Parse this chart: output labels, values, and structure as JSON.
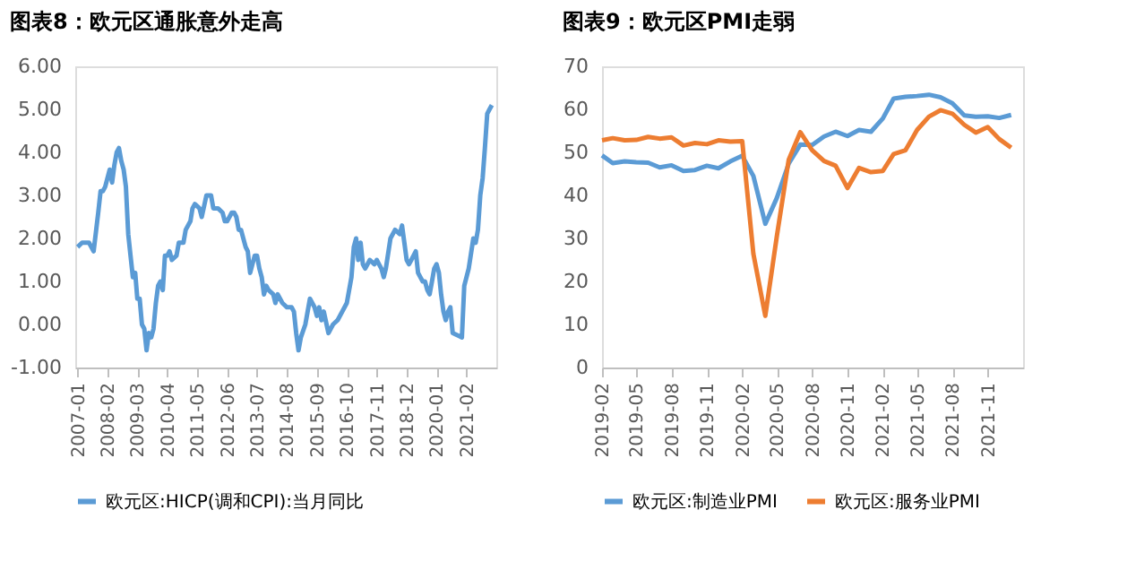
{
  "chart_data": [
    {
      "type": "line",
      "title": "图表8：欧元区通胀意外走高",
      "x": [
        "2007-01",
        "2007-03",
        "2007-06",
        "2007-08",
        "2007-10",
        "2007-11",
        "2007-12",
        "2008-01",
        "2008-03",
        "2008-04",
        "2008-05",
        "2008-06",
        "2008-07",
        "2008-08",
        "2008-09",
        "2008-10",
        "2008-11",
        "2008-12",
        "2009-01",
        "2009-02",
        "2009-03",
        "2009-04",
        "2009-05",
        "2009-06",
        "2009-07",
        "2009-08",
        "2009-09",
        "2009-10",
        "2009-11",
        "2009-12",
        "2010-01",
        "2010-02",
        "2010-03",
        "2010-04",
        "2010-05",
        "2010-06",
        "2010-08",
        "2010-09",
        "2010-11",
        "2010-12",
        "2011-02",
        "2011-03",
        "2011-04",
        "2011-06",
        "2011-07",
        "2011-09",
        "2011-10",
        "2011-11",
        "2011-12",
        "2012-02",
        "2012-04",
        "2012-05",
        "2012-06",
        "2012-08",
        "2012-09",
        "2012-10",
        "2012-11",
        "2012-12",
        "2013-02",
        "2013-03",
        "2013-04",
        "2013-05",
        "2013-06",
        "2013-07",
        "2013-08",
        "2013-09",
        "2013-10",
        "2013-11",
        "2013-12",
        "2014-02",
        "2014-03",
        "2014-04",
        "2014-06",
        "2014-08",
        "2014-10",
        "2014-11",
        "2014-12",
        "2015-01",
        "2015-02",
        "2015-04",
        "2015-06",
        "2015-08",
        "2015-09",
        "2015-10",
        "2015-11",
        "2015-12",
        "2016-02",
        "2016-04",
        "2016-06",
        "2016-09",
        "2016-10",
        "2016-12",
        "2017-01",
        "2017-02",
        "2017-03",
        "2017-04",
        "2017-05",
        "2017-06",
        "2017-08",
        "2017-10",
        "2017-11",
        "2017-12",
        "2018-01",
        "2018-02",
        "2018-03",
        "2018-05",
        "2018-07",
        "2018-09",
        "2018-10",
        "2018-11",
        "2018-12",
        "2019-01",
        "2019-02",
        "2019-04",
        "2019-05",
        "2019-07",
        "2019-08",
        "2019-09",
        "2019-10",
        "2019-11",
        "2019-12",
        "2020-01",
        "2020-02",
        "2020-03",
        "2020-04",
        "2020-05",
        "2020-06",
        "2020-07",
        "2020-08",
        "2020-12",
        "2021-01",
        "2021-03",
        "2021-05",
        "2021-06",
        "2021-07",
        "2021-08",
        "2021-09",
        "2021-10",
        "2021-11",
        "2021-12",
        "2022-01"
      ],
      "series": [
        {
          "name": "欧元区:HICP(调和CPI):当月同比",
          "color": "#5b9bd5",
          "values": [
            1.8,
            1.9,
            1.9,
            1.7,
            2.6,
            3.1,
            3.1,
            3.2,
            3.6,
            3.3,
            3.7,
            4.0,
            4.1,
            3.8,
            3.6,
            3.2,
            2.1,
            1.6,
            1.1,
            1.2,
            0.6,
            0.6,
            0.0,
            -0.1,
            -0.6,
            -0.2,
            -0.3,
            -0.1,
            0.5,
            0.9,
            1.0,
            0.8,
            1.6,
            1.6,
            1.7,
            1.5,
            1.6,
            1.9,
            1.9,
            2.2,
            2.4,
            2.7,
            2.8,
            2.7,
            2.5,
            3.0,
            3.0,
            3.0,
            2.7,
            2.7,
            2.6,
            2.4,
            2.4,
            2.6,
            2.6,
            2.5,
            2.2,
            2.2,
            1.8,
            1.7,
            1.2,
            1.4,
            1.6,
            1.6,
            1.3,
            1.1,
            0.7,
            0.9,
            0.8,
            0.7,
            0.5,
            0.7,
            0.5,
            0.4,
            0.4,
            0.3,
            -0.2,
            -0.6,
            -0.3,
            0.0,
            0.6,
            0.4,
            0.2,
            0.4,
            0.1,
            0.3,
            -0.2,
            0.0,
            0.1,
            0.4,
            0.5,
            1.1,
            1.8,
            2.0,
            1.5,
            1.9,
            1.4,
            1.3,
            1.5,
            1.4,
            1.5,
            1.4,
            1.3,
            1.1,
            1.3,
            2.0,
            2.2,
            2.1,
            2.3,
            1.9,
            1.5,
            1.4,
            1.5,
            1.7,
            1.2,
            1.0,
            1.0,
            0.8,
            0.7,
            1.0,
            1.3,
            1.4,
            1.2,
            0.7,
            0.3,
            0.1,
            0.3,
            0.4,
            -0.2,
            -0.3,
            0.9,
            1.3,
            2.0,
            1.9,
            2.2,
            3.0,
            3.4,
            4.1,
            4.9,
            5.0,
            5.1
          ]
        }
      ],
      "xlim": [
        "2006-12",
        "2022-03"
      ],
      "xticks": [
        "2007-01",
        "2008-02",
        "2009-03",
        "2010-04",
        "2011-05",
        "2012-06",
        "2013-07",
        "2014-08",
        "2015-09",
        "2016-10",
        "2017-11",
        "2018-12",
        "2020-01",
        "2021-02"
      ],
      "ylim": [
        -1,
        6
      ],
      "yticks": [
        {
          "value": -1,
          "label": "-1.00"
        },
        {
          "value": 0,
          "label": "0.00"
        },
        {
          "value": 1,
          "label": "1.00"
        },
        {
          "value": 2,
          "label": "2.00"
        },
        {
          "value": 3,
          "label": "3.00"
        },
        {
          "value": 4,
          "label": "4.00"
        },
        {
          "value": 5,
          "label": "5.00"
        },
        {
          "value": 6,
          "label": "6.00"
        }
      ],
      "grid": false,
      "legend": "bottom",
      "marker": "none",
      "line_style": "solid"
    },
    {
      "type": "line",
      "title": "图表9：欧元区PMI走弱",
      "x": [
        "2019-02",
        "2019-03",
        "2019-04",
        "2019-05",
        "2019-06",
        "2019-07",
        "2019-08",
        "2019-09",
        "2019-10",
        "2019-11",
        "2019-12",
        "2020-01",
        "2020-02",
        "2020-03",
        "2020-04",
        "2020-05",
        "2020-06",
        "2020-07",
        "2020-08",
        "2020-09",
        "2020-10",
        "2020-11",
        "2020-12",
        "2021-01",
        "2021-02",
        "2021-03",
        "2021-04",
        "2021-05",
        "2021-06",
        "2021-07",
        "2021-08",
        "2021-09",
        "2021-10",
        "2021-11",
        "2021-12",
        "2022-01"
      ],
      "series": [
        {
          "name": "欧元区:制造业PMI",
          "color": "#5b9bd5",
          "values": [
            49.3,
            47.5,
            47.9,
            47.7,
            47.6,
            46.5,
            47.0,
            45.7,
            45.9,
            46.9,
            46.3,
            47.9,
            49.2,
            44.5,
            33.4,
            39.4,
            47.4,
            51.8,
            51.7,
            53.7,
            54.8,
            53.8,
            55.2,
            54.8,
            57.9,
            62.5,
            62.9,
            63.1,
            63.4,
            62.8,
            61.4,
            58.6,
            58.3,
            58.4,
            58.0,
            58.7
          ]
        },
        {
          "name": "欧元区:服务业PMI",
          "color": "#ed7d31",
          "values": [
            52.8,
            53.3,
            52.8,
            52.9,
            53.6,
            53.2,
            53.5,
            51.6,
            52.2,
            51.9,
            52.8,
            52.5,
            52.6,
            26.4,
            12.0,
            30.5,
            48.3,
            54.7,
            50.5,
            48.0,
            46.9,
            41.7,
            46.4,
            45.4,
            45.7,
            49.6,
            50.5,
            55.2,
            58.3,
            59.8,
            59.0,
            56.4,
            54.6,
            55.9,
            53.1,
            51.1
          ]
        }
      ],
      "xlim": [
        "2019-02",
        "2022-02"
      ],
      "xticks": [
        "2019-02",
        "2019-05",
        "2019-08",
        "2019-11",
        "2020-02",
        "2020-05",
        "2020-08",
        "2020-11",
        "2021-02",
        "2021-05",
        "2021-08",
        "2021-11"
      ],
      "ylim": [
        0,
        70
      ],
      "yticks": [
        0,
        10,
        20,
        30,
        40,
        50,
        60,
        70
      ],
      "grid": false,
      "legend": "bottom",
      "marker": "none",
      "line_style": "solid"
    }
  ]
}
